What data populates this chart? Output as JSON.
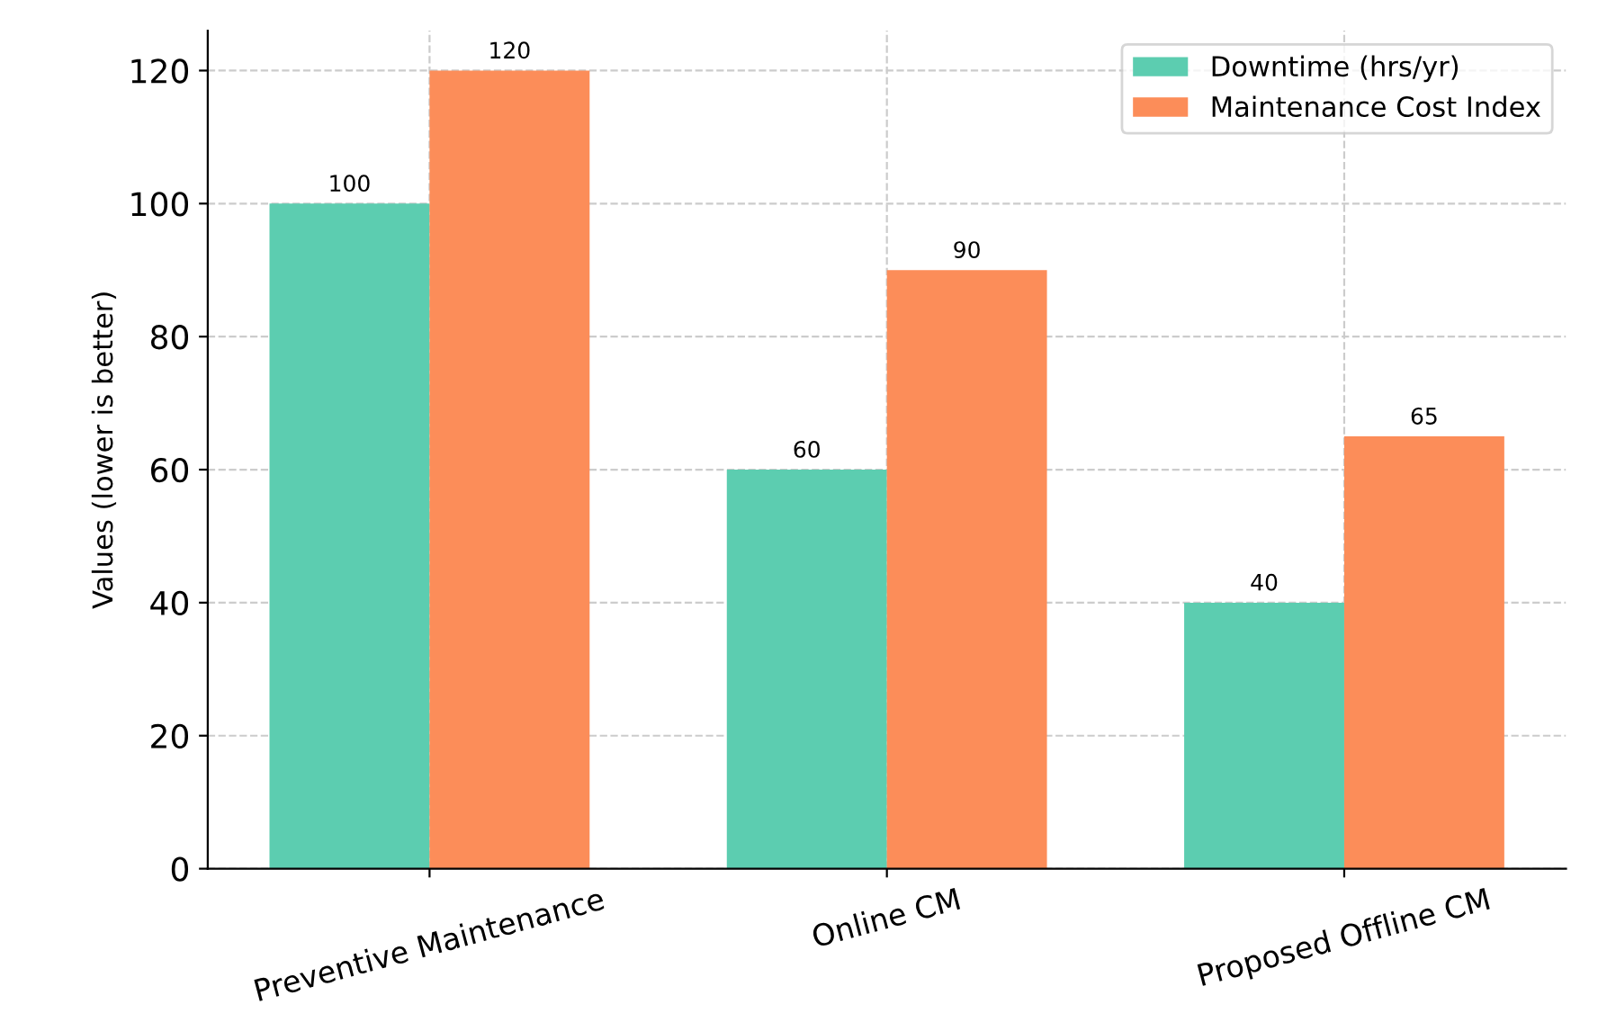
{
  "chart_data": {
    "type": "bar",
    "ylabel": "Values (lower is better)",
    "categories": [
      "Preventive Maintenance",
      "Online CM",
      "Proposed Offline CM"
    ],
    "series": [
      {
        "name": "Downtime (hrs/yr)",
        "color": "#5ccdb0",
        "values": [
          100,
          60,
          40
        ]
      },
      {
        "name": "Maintenance Cost Index",
        "color": "#fc8d59",
        "values": [
          120,
          90,
          65
        ]
      }
    ],
    "ylim": [
      0,
      126
    ],
    "yticks": [
      0,
      20,
      40,
      60,
      80,
      100,
      120
    ],
    "grid": true,
    "legend": "top right",
    "data_labels": true
  }
}
